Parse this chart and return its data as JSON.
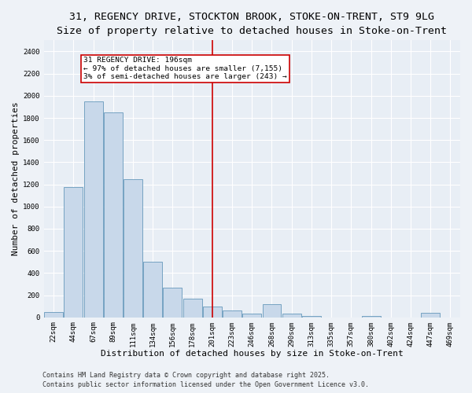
{
  "title_line1": "31, REGENCY DRIVE, STOCKTON BROOK, STOKE-ON-TRENT, ST9 9LG",
  "title_line2": "Size of property relative to detached houses in Stoke-on-Trent",
  "xlabel": "Distribution of detached houses by size in Stoke-on-Trent",
  "ylabel": "Number of detached properties",
  "bar_labels": [
    "22sqm",
    "44sqm",
    "67sqm",
    "89sqm",
    "111sqm",
    "134sqm",
    "156sqm",
    "178sqm",
    "201sqm",
    "223sqm",
    "246sqm",
    "268sqm",
    "290sqm",
    "313sqm",
    "335sqm",
    "357sqm",
    "380sqm",
    "402sqm",
    "424sqm",
    "447sqm",
    "469sqm"
  ],
  "bar_values": [
    50,
    1175,
    1950,
    1850,
    1250,
    500,
    270,
    170,
    100,
    60,
    30,
    120,
    30,
    10,
    0,
    0,
    10,
    0,
    0,
    40,
    0
  ],
  "bar_color": "#c8d8ea",
  "bar_edge_color": "#6699bb",
  "vline_color": "#cc0000",
  "annotation_text": "31 REGENCY DRIVE: 196sqm\n← 97% of detached houses are smaller (7,155)\n3% of semi-detached houses are larger (243) →",
  "annotation_box_color": "#ffffff",
  "annotation_box_edge": "#cc0000",
  "ylim": [
    0,
    2500
  ],
  "yticks": [
    0,
    200,
    400,
    600,
    800,
    1000,
    1200,
    1400,
    1600,
    1800,
    2000,
    2200,
    2400
  ],
  "background_color": "#e8eef5",
  "fig_background_color": "#eef2f7",
  "grid_color": "#ffffff",
  "footer_line1": "Contains HM Land Registry data © Crown copyright and database right 2025.",
  "footer_line2": "Contains public sector information licensed under the Open Government Licence v3.0.",
  "title_fontsize": 9.5,
  "subtitle_fontsize": 8.5,
  "axis_label_fontsize": 8,
  "tick_fontsize": 6.5,
  "annotation_fontsize": 6.8,
  "footer_fontsize": 6
}
